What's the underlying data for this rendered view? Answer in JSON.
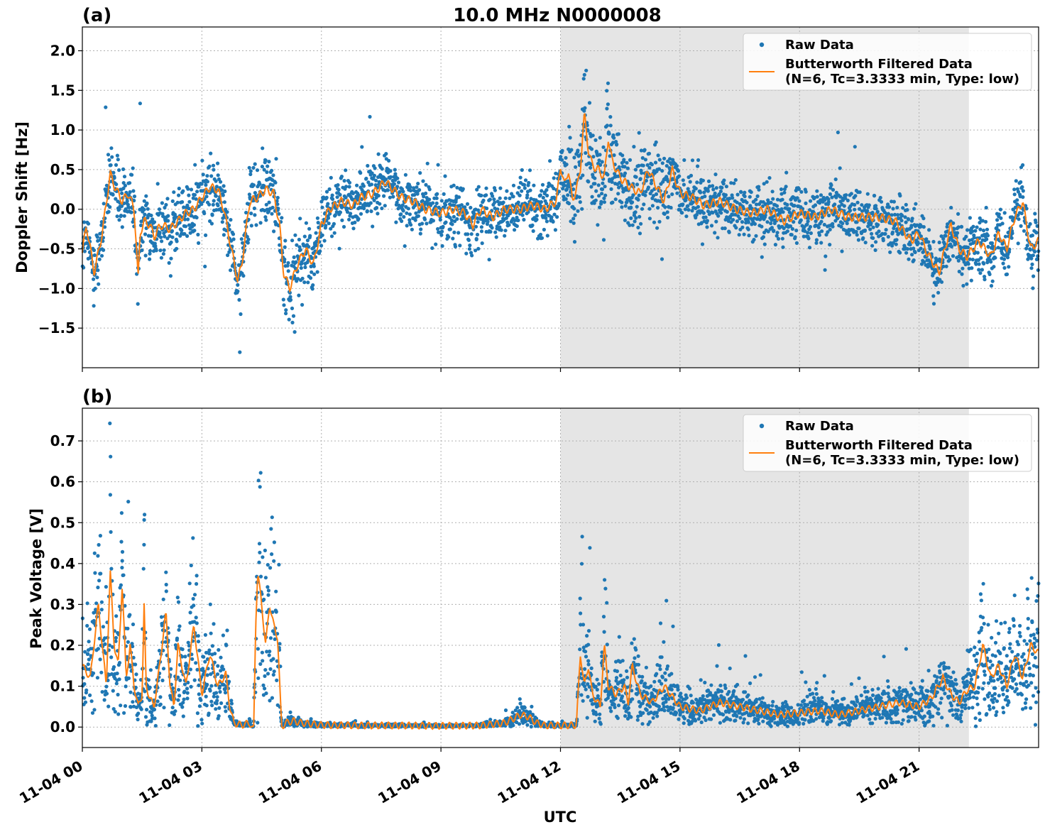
{
  "chart_data": [
    {
      "type": "scatter",
      "panel_label": "(a)",
      "title": "10.0 MHz N0000008",
      "ylabel": "Doppler Shift [Hz]",
      "xlabel": "",
      "x_unit": "hours since 11-04 00:00 UTC",
      "xlim": [
        0,
        24
      ],
      "ylim": [
        -2.0,
        2.3
      ],
      "yticks": [
        -1.5,
        -1.0,
        -0.5,
        0.0,
        0.5,
        1.0,
        1.5,
        2.0
      ],
      "ytick_labels": [
        "−1.5",
        "−1.0",
        "−0.5",
        "0.0",
        "0.5",
        "1.0",
        "1.5",
        "2.0"
      ],
      "grid": true,
      "shaded_interval": [
        12.0,
        22.25
      ],
      "legend": {
        "placement": "top-right",
        "entries": [
          "Raw Data",
          "Butterworth Filtered Data",
          "(N=6, Tc=3.3333 min, Type: low)"
        ]
      },
      "series": [
        {
          "name": "Raw Data",
          "style": "points",
          "color": "#1f77b4",
          "spread": "±0.25 Hz around filtered curve, ±0.5 Hz near 12.0–14.5 h"
        },
        {
          "name": "Butterworth Filtered Data",
          "style": "line",
          "color": "#ff7f0e",
          "x": [
            0,
            0.1,
            0.3,
            0.5,
            0.7,
            0.8,
            0.9,
            1.0,
            1.15,
            1.3,
            1.35,
            1.4,
            1.45,
            1.55,
            1.7,
            1.8,
            1.9,
            2.0,
            2.2,
            2.4,
            2.6,
            2.8,
            3.0,
            3.2,
            3.4,
            3.55,
            3.7,
            3.9,
            4.0,
            4.2,
            4.4,
            4.6,
            4.8,
            4.95,
            5.05,
            5.2,
            5.4,
            5.6,
            5.8,
            6.0,
            6.2,
            6.5,
            6.8,
            7.0,
            7.3,
            7.6,
            8.0,
            8.3,
            8.6,
            9.0,
            9.3,
            9.6,
            9.8,
            10.0,
            10.3,
            10.6,
            11.0,
            11.3,
            11.6,
            11.9,
            12.0,
            12.1,
            12.2,
            12.3,
            12.45,
            12.5,
            12.55,
            12.6,
            12.7,
            12.8,
            12.95,
            13.1,
            13.2,
            13.3,
            13.5,
            13.7,
            14.0,
            14.2,
            14.4,
            14.6,
            14.8,
            15.0,
            15.3,
            15.6,
            16.0,
            16.4,
            16.8,
            17.2,
            17.6,
            18.0,
            18.4,
            18.8,
            19.2,
            19.6,
            20.0,
            20.4,
            20.8,
            21.0,
            21.2,
            21.5,
            21.8,
            22.0,
            22.2,
            22.5,
            22.8,
            23.0,
            23.2,
            23.4,
            23.6,
            23.8,
            24.0
          ],
          "y": [
            -0.55,
            -0.2,
            -0.8,
            -0.3,
            0.45,
            0.3,
            0.2,
            0.1,
            0.2,
            0.0,
            -0.4,
            -0.9,
            -0.3,
            -0.15,
            -0.2,
            -0.35,
            -0.25,
            -0.2,
            -0.25,
            -0.15,
            -0.05,
            0.0,
            0.15,
            0.28,
            0.25,
            0.0,
            -0.4,
            -0.9,
            -0.7,
            0.1,
            0.15,
            0.25,
            0.2,
            -0.2,
            -0.8,
            -1.0,
            -0.7,
            -0.5,
            -0.7,
            -0.2,
            0.0,
            0.1,
            0.05,
            0.15,
            0.2,
            0.35,
            0.15,
            0.1,
            0.0,
            -0.05,
            0.0,
            -0.05,
            -0.2,
            0.0,
            -0.1,
            0.0,
            0.0,
            0.05,
            0.0,
            0.1,
            0.55,
            0.3,
            0.5,
            0.1,
            0.35,
            0.5,
            0.9,
            1.2,
            0.75,
            0.55,
            0.5,
            0.4,
            0.9,
            0.6,
            0.4,
            0.3,
            0.2,
            0.5,
            0.3,
            0.1,
            0.5,
            0.2,
            0.15,
            0.05,
            0.1,
            0.0,
            -0.05,
            0.0,
            -0.15,
            -0.05,
            -0.1,
            0.0,
            -0.1,
            -0.1,
            -0.1,
            -0.15,
            -0.4,
            -0.3,
            -0.55,
            -0.8,
            -0.2,
            -0.5,
            -0.6,
            -0.4,
            -0.6,
            -0.3,
            -0.5,
            -0.1,
            0.1,
            -0.5,
            -0.4
          ]
        }
      ]
    },
    {
      "type": "scatter",
      "panel_label": "(b)",
      "title": "",
      "ylabel": "Peak Voltage [V]",
      "xlabel": "UTC",
      "x_unit": "hours since 11-04 00:00 UTC",
      "xlim": [
        0,
        24
      ],
      "ylim": [
        -0.05,
        0.78
      ],
      "yticks": [
        0.0,
        0.1,
        0.2,
        0.3,
        0.4,
        0.5,
        0.6,
        0.7
      ],
      "ytick_labels": [
        "0.0",
        "0.1",
        "0.2",
        "0.3",
        "0.4",
        "0.5",
        "0.6",
        "0.7"
      ],
      "xticks": [
        0,
        3,
        6,
        9,
        12,
        15,
        18,
        21
      ],
      "xtick_labels": [
        "11-04 00",
        "11-04 03",
        "11-04 06",
        "11-04 09",
        "11-04 12",
        "11-04 15",
        "11-04 18",
        "11-04 21"
      ],
      "grid": true,
      "shaded_interval": [
        12.0,
        22.25
      ],
      "legend": {
        "placement": "top-right",
        "entries": [
          "Raw Data",
          "Butterworth Filtered Data",
          "(N=6, Tc=3.3333 min, Type: low)"
        ]
      },
      "series": [
        {
          "name": "Raw Data",
          "style": "points",
          "color": "#1f77b4",
          "spread": "proportional to filtered level, peaks up to ~0.74 V"
        },
        {
          "name": "Butterworth Filtered Data",
          "style": "line",
          "color": "#ff7f0e",
          "x": [
            0,
            0.2,
            0.4,
            0.6,
            0.7,
            0.8,
            0.9,
            1.0,
            1.1,
            1.2,
            1.3,
            1.4,
            1.5,
            1.55,
            1.6,
            1.7,
            1.8,
            1.9,
            2.0,
            2.1,
            2.2,
            2.3,
            2.4,
            2.6,
            2.8,
            3.0,
            3.2,
            3.4,
            3.6,
            3.7,
            3.8,
            4.0,
            4.2,
            4.3,
            4.35,
            4.4,
            4.5,
            4.6,
            4.7,
            4.8,
            4.9,
            5.0,
            5.1,
            5.3,
            5.5,
            6.0,
            7.0,
            8.0,
            9.0,
            10.0,
            10.6,
            10.8,
            11.0,
            11.2,
            11.4,
            11.6,
            12.0,
            12.4,
            12.5,
            12.6,
            12.7,
            12.8,
            13.0,
            13.1,
            13.2,
            13.4,
            13.6,
            13.7,
            13.8,
            14.0,
            14.3,
            14.6,
            15.0,
            15.5,
            16.0,
            16.5,
            17.0,
            17.5,
            18.0,
            18.5,
            19.0,
            19.5,
            20.0,
            20.5,
            21.0,
            21.3,
            21.6,
            21.8,
            22.0,
            22.2,
            22.4,
            22.6,
            22.8,
            23.0,
            23.2,
            23.4,
            23.6,
            23.8,
            24.0
          ],
          "y": [
            0.15,
            0.12,
            0.3,
            0.1,
            0.38,
            0.2,
            0.15,
            0.35,
            0.12,
            0.2,
            0.1,
            0.05,
            0.08,
            0.3,
            0.1,
            0.07,
            0.05,
            0.12,
            0.2,
            0.28,
            0.1,
            0.05,
            0.2,
            0.1,
            0.25,
            0.08,
            0.18,
            0.1,
            0.13,
            0.05,
            0.01,
            0.005,
            0.01,
            -0.01,
            0.25,
            0.38,
            0.3,
            0.2,
            0.3,
            0.25,
            0.22,
            0.0,
            0.01,
            0.015,
            0.01,
            0.005,
            0.004,
            0.004,
            0.003,
            0.004,
            0.01,
            0.02,
            0.03,
            0.025,
            0.01,
            0.004,
            0.004,
            0.005,
            0.18,
            0.1,
            0.15,
            0.08,
            0.05,
            0.2,
            0.1,
            0.08,
            0.1,
            0.06,
            0.15,
            0.08,
            0.06,
            0.1,
            0.05,
            0.04,
            0.06,
            0.05,
            0.04,
            0.03,
            0.035,
            0.04,
            0.03,
            0.04,
            0.05,
            0.06,
            0.05,
            0.07,
            0.12,
            0.08,
            0.06,
            0.09,
            0.1,
            0.2,
            0.12,
            0.15,
            0.1,
            0.18,
            0.12,
            0.2,
            0.18
          ]
        }
      ]
    }
  ]
}
